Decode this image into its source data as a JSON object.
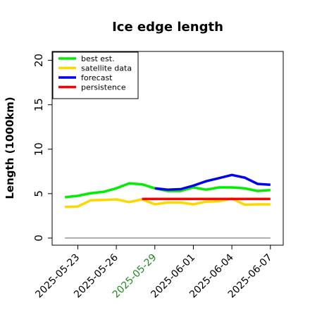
{
  "chart_data": {
    "type": "line",
    "title": "Ice edge length",
    "xlabel": "",
    "ylabel": "Length (1000km)",
    "ylim": [
      -0.8,
      21
    ],
    "yticks": [
      0,
      5,
      10,
      15,
      20
    ],
    "ytick_labels": [
      "0",
      "5",
      "10",
      "15",
      "20"
    ],
    "xlim": [
      "2025-05-21",
      "2025-06-08"
    ],
    "xticks": [
      "2025-05-23",
      "2025-05-26",
      "2025-05-29",
      "2025-06-01",
      "2025-06-04",
      "2025-06-07"
    ],
    "highlighted_xtick": "2025-05-29",
    "highlight_color": "#228b22",
    "grid": false,
    "legend_position": "top-left",
    "series": [
      {
        "name": "best est.",
        "color": "#00ee00",
        "x": [
          "2025-05-22",
          "2025-05-23",
          "2025-05-24",
          "2025-05-25",
          "2025-05-26",
          "2025-05-27",
          "2025-05-28",
          "2025-05-29",
          "2025-05-30",
          "2025-05-31",
          "2025-06-01",
          "2025-06-02",
          "2025-06-03",
          "2025-06-04",
          "2025-06-05",
          "2025-06-06",
          "2025-06-07"
        ],
        "values": [
          4.6,
          4.75,
          5.05,
          5.2,
          5.6,
          6.15,
          6.05,
          5.6,
          5.3,
          5.3,
          5.7,
          5.45,
          5.7,
          5.7,
          5.6,
          5.3,
          5.4
        ]
      },
      {
        "name": "satellite data",
        "color": "#ffd700",
        "x": [
          "2025-05-22",
          "2025-05-23",
          "2025-05-24",
          "2025-05-25",
          "2025-05-26",
          "2025-05-27",
          "2025-05-28",
          "2025-05-29",
          "2025-05-30",
          "2025-05-31",
          "2025-06-01",
          "2025-06-02",
          "2025-06-03",
          "2025-06-04",
          "2025-06-05",
          "2025-06-06",
          "2025-06-07"
        ],
        "values": [
          3.5,
          3.55,
          4.25,
          4.3,
          4.35,
          4.05,
          4.35,
          3.8,
          4.0,
          4.0,
          3.8,
          4.1,
          4.15,
          4.45,
          3.75,
          3.8,
          3.8
        ]
      },
      {
        "name": "forecast",
        "color": "#0000ee",
        "x": [
          "2025-05-29",
          "2025-05-30",
          "2025-05-31",
          "2025-06-01",
          "2025-06-02",
          "2025-06-03",
          "2025-06-04",
          "2025-06-05",
          "2025-06-06",
          "2025-06-07"
        ],
        "values": [
          5.6,
          5.45,
          5.5,
          5.9,
          6.4,
          6.75,
          7.1,
          6.8,
          6.1,
          6.0
        ]
      },
      {
        "name": "persistence",
        "color": "#ff0000",
        "x": [
          "2025-05-28",
          "2025-06-07"
        ],
        "values": [
          4.4,
          4.4
        ]
      },
      {
        "name": "",
        "color": "#808080",
        "thin": true,
        "x": [
          "2025-05-22",
          "2025-06-07"
        ],
        "values": [
          0,
          0
        ]
      }
    ]
  }
}
